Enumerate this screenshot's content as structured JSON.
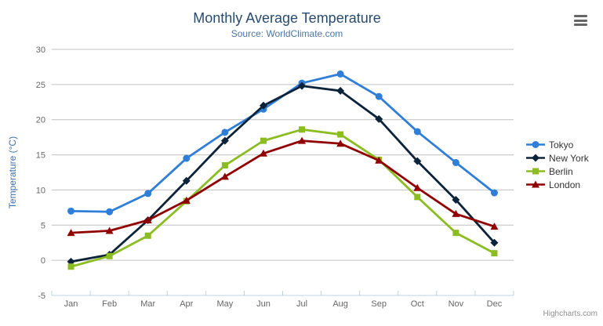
{
  "title": "Monthly Average Temperature",
  "subtitle": "Source: WorldClimate.com",
  "credits_label": "Highcharts.com",
  "export_menu": {
    "icon": "hamburger-icon"
  },
  "chart_data": {
    "type": "line",
    "title": "Monthly Average Temperature",
    "subtitle": "Source: WorldClimate.com",
    "categories": [
      "Jan",
      "Feb",
      "Mar",
      "Apr",
      "May",
      "Jun",
      "Jul",
      "Aug",
      "Sep",
      "Oct",
      "Nov",
      "Dec"
    ],
    "series": [
      {
        "name": "Tokyo",
        "color": "#2f7ed8",
        "marker": "circle",
        "values": [
          7.0,
          6.9,
          9.5,
          14.5,
          18.2,
          21.5,
          25.2,
          26.5,
          23.3,
          18.3,
          13.9,
          9.6
        ]
      },
      {
        "name": "New York",
        "color": "#0d233a",
        "marker": "diamond",
        "values": [
          -0.2,
          0.8,
          5.7,
          11.3,
          17.0,
          22.0,
          24.8,
          24.1,
          20.1,
          14.1,
          8.6,
          2.5
        ]
      },
      {
        "name": "Berlin",
        "color": "#8bbc21",
        "marker": "square",
        "values": [
          -0.9,
          0.6,
          3.5,
          8.4,
          13.5,
          17.0,
          18.6,
          17.9,
          14.3,
          9.0,
          3.9,
          1.0
        ]
      },
      {
        "name": "London",
        "color": "#910000",
        "marker": "triangle",
        "values": [
          3.9,
          4.2,
          5.7,
          8.5,
          11.9,
          15.2,
          17.0,
          16.6,
          14.2,
          10.3,
          6.6,
          4.8
        ]
      }
    ],
    "xlabel": "",
    "ylabel": "Temperature (°C)",
    "ylim": [
      -5,
      30
    ],
    "ytick_interval": 5,
    "yticks": [
      -5,
      0,
      5,
      10,
      15,
      20,
      25,
      30
    ],
    "grid": true,
    "legend_position": "right",
    "theme": {
      "grid_color": "#c0c0c0",
      "axis_line_color": "#c0d0e0",
      "tick_color": "#c0d0e0",
      "label_color": "#666666",
      "axis_title_color": "#4572a7",
      "title_color": "#274b6d",
      "subtitle_color": "#4d759e",
      "legend_text_color": "#333333",
      "credits_color": "#909090",
      "menu_icon_color": "#666666"
    }
  }
}
